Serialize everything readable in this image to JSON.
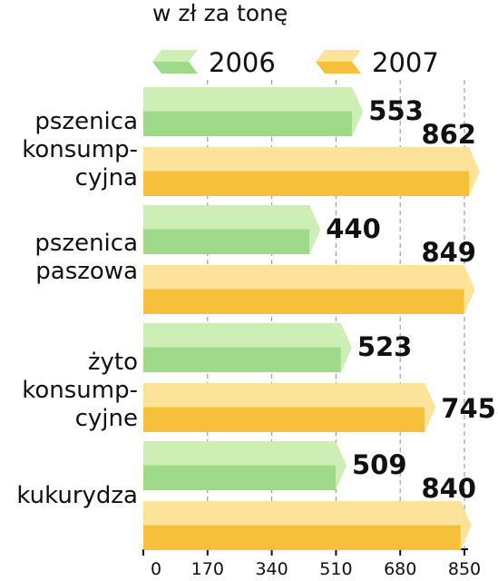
{
  "unit_label": "w zł za tonę",
  "chart_data": {
    "type": "bar",
    "orientation": "horizontal",
    "title": "",
    "xlabel": "w zł za tonę",
    "xlim": [
      0,
      850
    ],
    "xticks": [
      "0",
      "170",
      "340",
      "510",
      "680",
      "850"
    ],
    "categories": [
      [
        "pszenica",
        "konsump-",
        "cyjna"
      ],
      [
        "pszenica",
        "paszowa"
      ],
      [
        "żyto",
        "konsump-",
        "cyjne"
      ],
      [
        "kukurydza"
      ]
    ],
    "series": [
      {
        "name": "2006",
        "values": [
          553,
          440,
          523,
          509
        ],
        "color": "#9fd98a",
        "color_light": "#cdeeb5"
      },
      {
        "name": "2007",
        "values": [
          862,
          849,
          745,
          840
        ],
        "color": "#f7c03a",
        "color_light": "#fde39a"
      }
    ],
    "legend_position": "top",
    "grid": true
  }
}
